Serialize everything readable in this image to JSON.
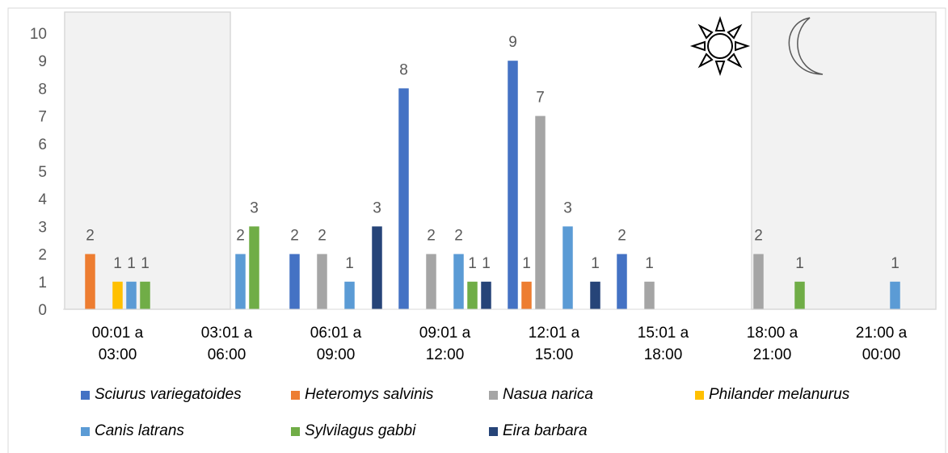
{
  "chart_data": {
    "type": "bar",
    "categories": [
      [
        "00:01 a",
        "03:00"
      ],
      [
        "03:01 a",
        "06:00"
      ],
      [
        "06:01 a",
        "09:00"
      ],
      [
        "09:01 a",
        "12:00"
      ],
      [
        "12:01 a",
        "15:00"
      ],
      [
        "15:01 a",
        "18:00"
      ],
      [
        "18:00 a",
        "21:00"
      ],
      [
        "21:00 a",
        "00:00"
      ]
    ],
    "yticks": [
      "0",
      "1",
      "2",
      "3",
      "4",
      "5",
      "6",
      "7",
      "8",
      "9",
      "10"
    ],
    "ylim": [
      0,
      10
    ],
    "grid": false,
    "legend_position": "bottom",
    "series": [
      {
        "name": "Sciurus variegatoides",
        "color": "#4472C4",
        "values": [
          null,
          null,
          2,
          8,
          9,
          2,
          null,
          null
        ]
      },
      {
        "name": "Heteromys salvinis",
        "color": "#ED7D31",
        "values": [
          2,
          null,
          null,
          null,
          1,
          null,
          null,
          null
        ]
      },
      {
        "name": "Nasua narica",
        "color": "#A5A5A5",
        "values": [
          null,
          null,
          2,
          2,
          7,
          1,
          2,
          null
        ]
      },
      {
        "name": "Philander melanurus",
        "color": "#FFC000",
        "values": [
          1,
          null,
          null,
          null,
          null,
          null,
          null,
          null
        ]
      },
      {
        "name": "Canis latrans",
        "color": "#5B9BD5",
        "values": [
          1,
          2,
          1,
          2,
          3,
          null,
          null,
          1
        ]
      },
      {
        "name": "Sylvilagus gabbi",
        "color": "#70AD47",
        "values": [
          1,
          3,
          null,
          1,
          null,
          null,
          1,
          null
        ]
      },
      {
        "name": "Eira barbara",
        "color": "#264478",
        "values": [
          null,
          null,
          3,
          1,
          1,
          null,
          null,
          null
        ]
      }
    ],
    "annotations": {
      "day_icon": "sun-icon",
      "night_icon": "crescent-moon-icon",
      "shaded_periods": [
        "night"
      ]
    }
  }
}
